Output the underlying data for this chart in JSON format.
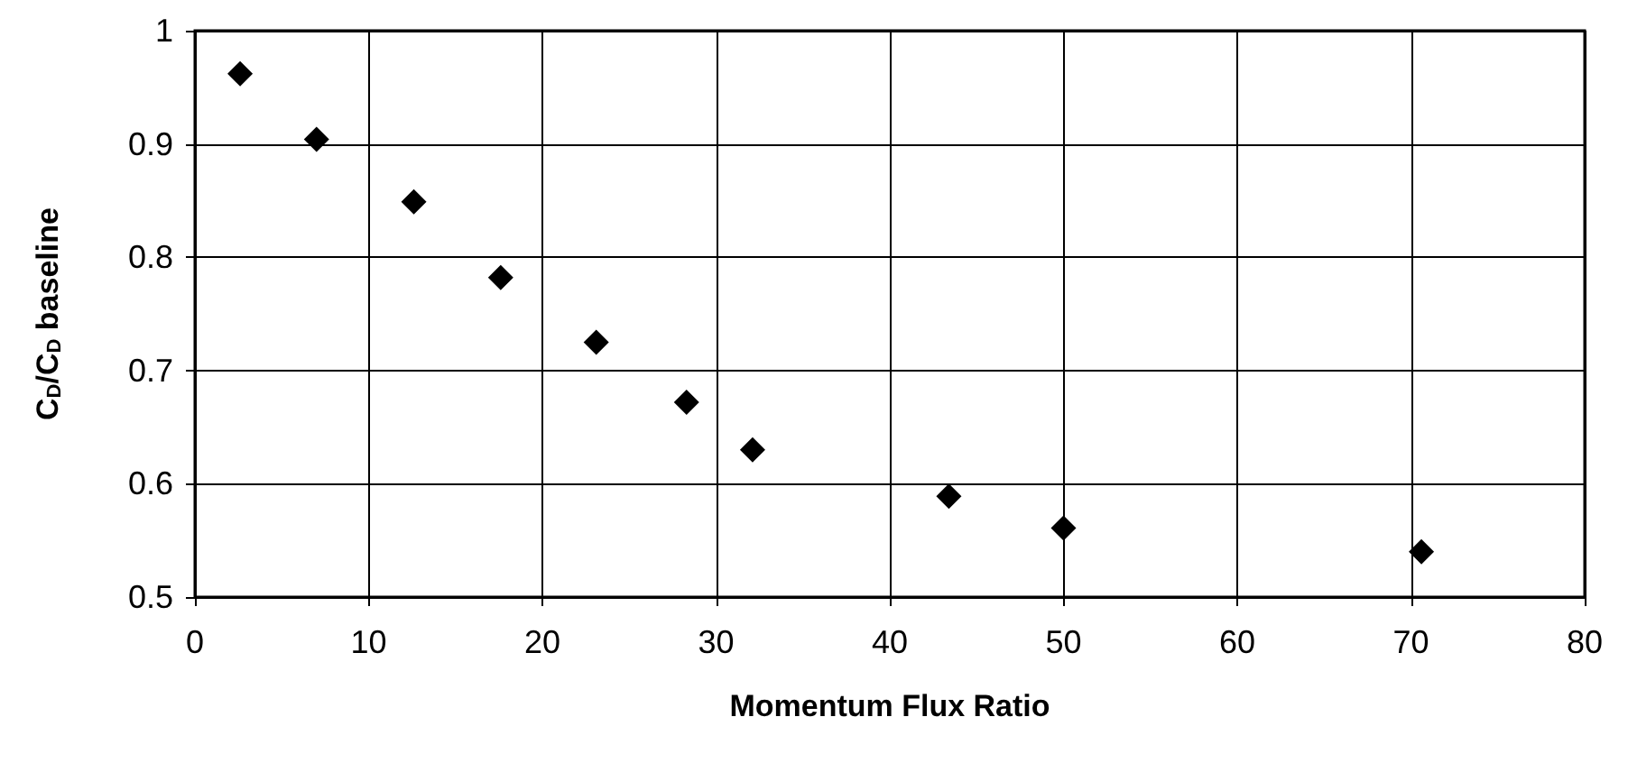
{
  "chart_data": {
    "type": "scatter",
    "xlabel": "Momentum Flux Ratio",
    "ylabel": "C$_{D}$/C$_{D}$ baseline",
    "x": [
      2.6,
      7.0,
      12.6,
      17.6,
      23.1,
      28.3,
      32.1,
      43.4,
      50.0,
      70.6
    ],
    "series": [
      {
        "color": "#000000",
        "values": [
          0.962,
          0.904,
          0.849,
          0.782,
          0.725,
          0.672,
          0.63,
          0.589,
          0.561,
          0.54
        ]
      }
    ],
    "xlim": [
      0,
      80
    ],
    "xticks": [
      0,
      10,
      20,
      30,
      40,
      50,
      60,
      70,
      80
    ],
    "ylim": [
      0.5,
      1
    ],
    "yticks": [
      0.5,
      0.6,
      0.7,
      0.8,
      0.9,
      1
    ],
    "grid": true,
    "marker": "diamond"
  }
}
